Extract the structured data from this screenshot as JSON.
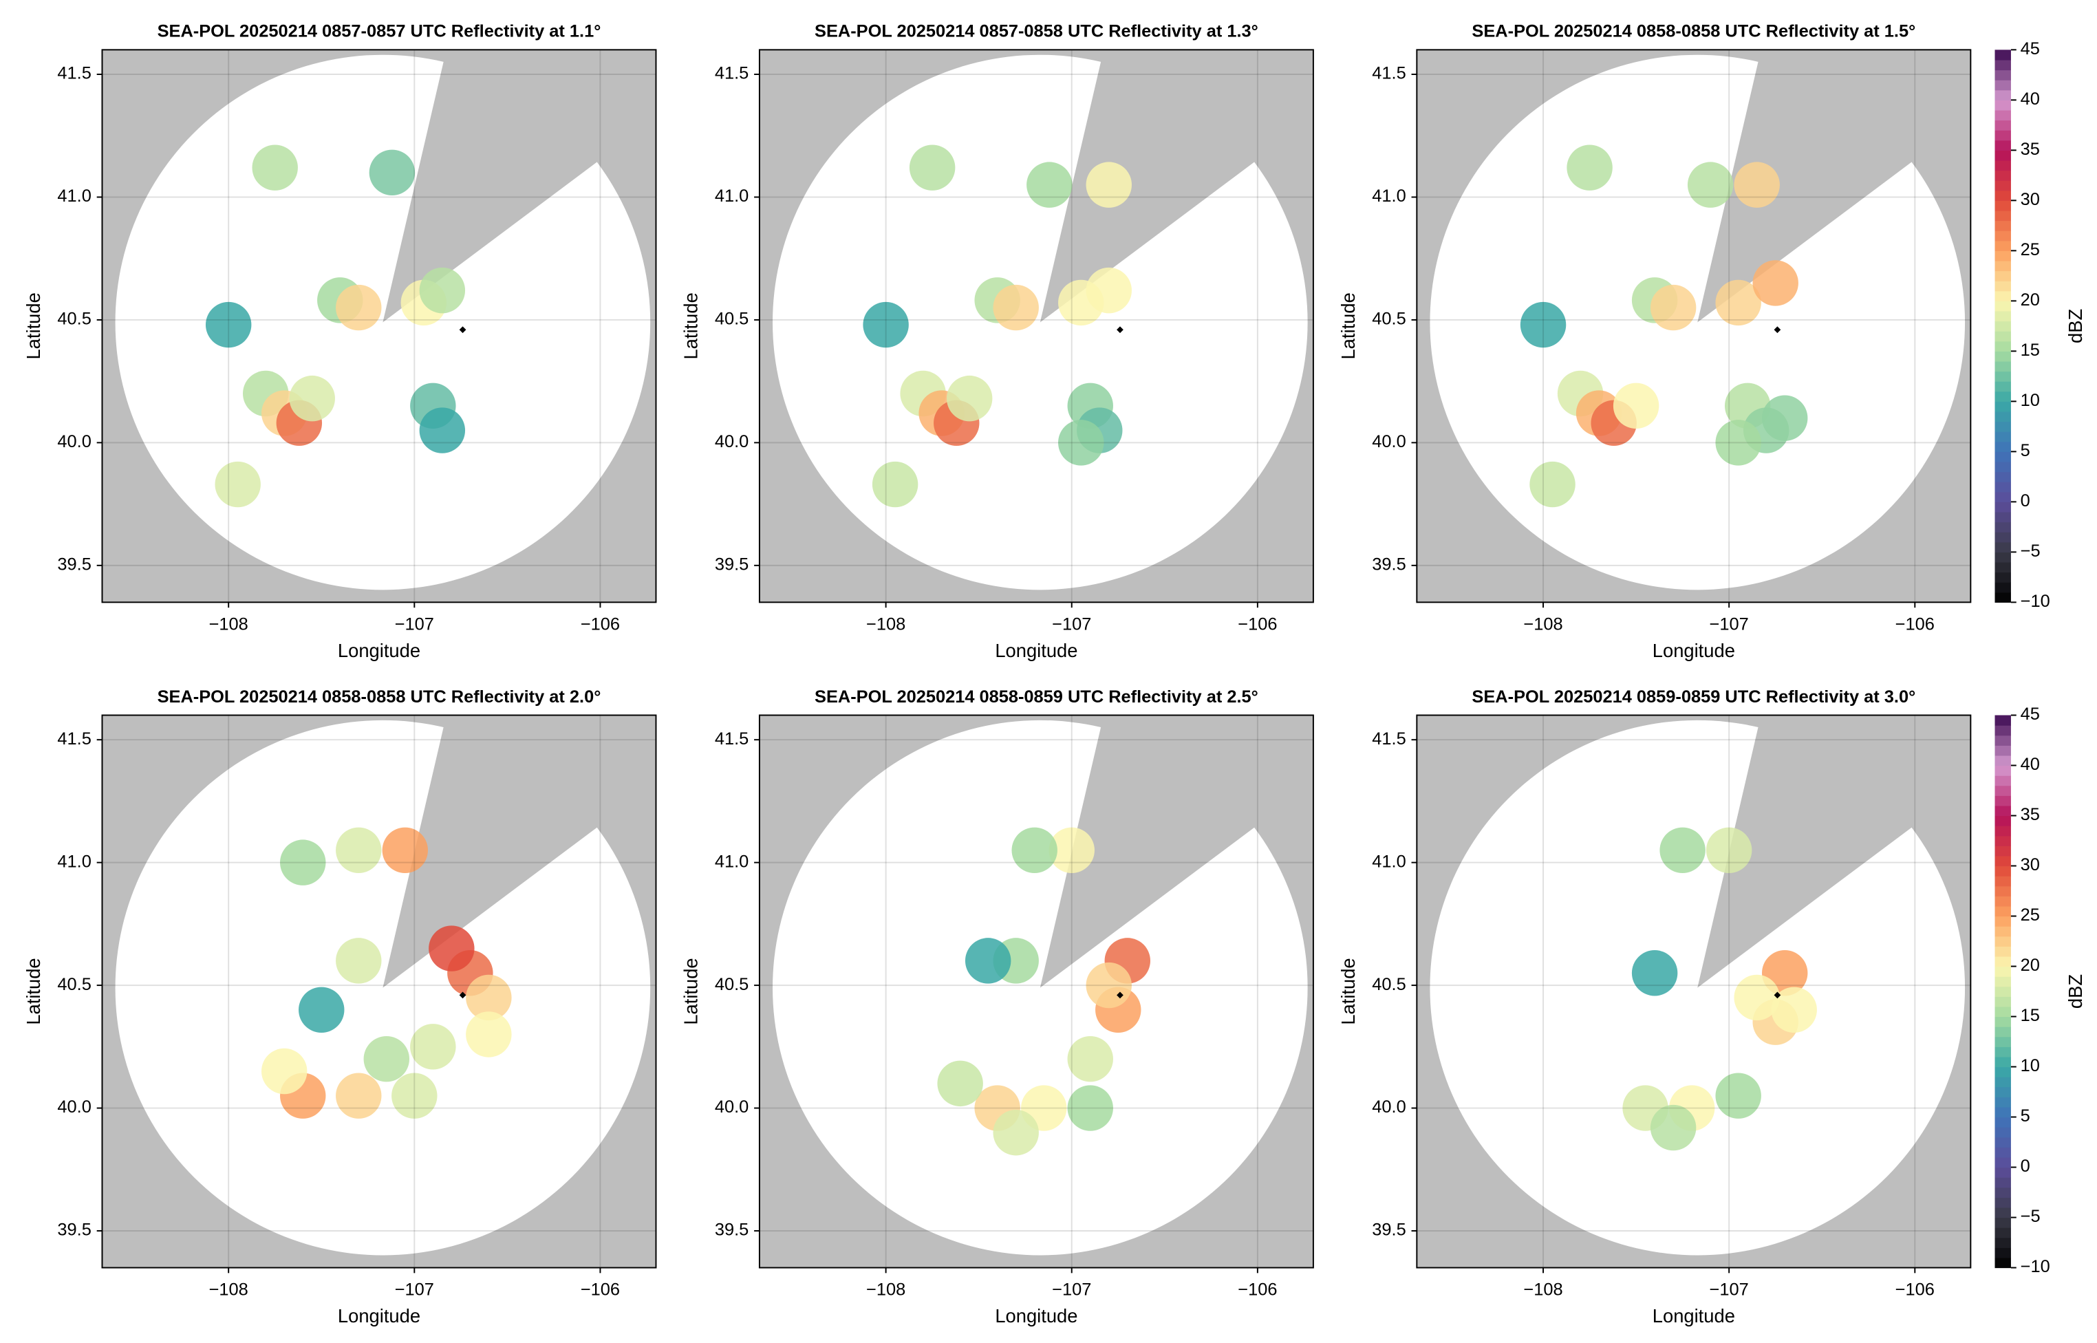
{
  "colormap": {
    "lim": [
      -10,
      45
    ],
    "colors": [
      "#000000",
      "#3a3a48",
      "#5b4d9a",
      "#3f73b8",
      "#3aa8a6",
      "#a6dba0",
      "#fbf6b0",
      "#fca160",
      "#e04a3a",
      "#b5125a",
      "#d59ad0",
      "#3d0b52"
    ]
  },
  "chart_data": [
    {
      "type": "radar",
      "title": "SEA-POL 20250214 0857-0857 UTC Reflectivity at 1.1°",
      "xlabel": "Longitude",
      "ylabel": "Latitude",
      "xlim": [
        -108.68,
        -105.7
      ],
      "ylim": [
        39.35,
        41.6
      ],
      "xticks": [
        {
          "value": -108,
          "label": "−108"
        },
        {
          "value": -107,
          "label": "−107"
        },
        {
          "value": -106,
          "label": "−106"
        }
      ],
      "yticks": [
        39.5,
        {
          "value": 40,
          "label": "40.0"
        },
        40.5,
        {
          "value": 41,
          "label": "41.0"
        },
        41.5
      ],
      "grid": true,
      "radar": {
        "x": -107.17,
        "y": 40.49
      },
      "site": {
        "x": -106.74,
        "y": 40.46
      },
      "x": [
        -107.8,
        -107.7,
        -107.62,
        -107.55,
        -107.4,
        -107.3,
        -106.95,
        -106.85,
        -106.9,
        -106.85,
        -107.12,
        -107.75,
        -107.95,
        -108.0
      ],
      "y": [
        40.2,
        40.12,
        40.08,
        40.18,
        40.58,
        40.55,
        40.57,
        40.62,
        40.15,
        40.05,
        41.1,
        41.12,
        39.83,
        40.48
      ],
      "values": [
        16,
        22,
        28,
        18,
        15,
        22,
        20,
        16,
        12,
        10,
        13,
        16,
        18,
        10
      ]
    },
    {
      "type": "radar",
      "title": "SEA-POL 20250214 0857-0858 UTC Reflectivity at 1.3°",
      "xlabel": "Longitude",
      "ylabel": "Latitude",
      "xlim": [
        -108.68,
        -105.7
      ],
      "ylim": [
        39.35,
        41.6
      ],
      "xticks": [
        {
          "value": -108,
          "label": "−108"
        },
        {
          "value": -107,
          "label": "−107"
        },
        {
          "value": -106,
          "label": "−106"
        }
      ],
      "yticks": [
        39.5,
        {
          "value": 40,
          "label": "40.0"
        },
        40.5,
        {
          "value": 41,
          "label": "41.0"
        },
        41.5
      ],
      "grid": true,
      "radar": {
        "x": -107.17,
        "y": 40.49
      },
      "site": {
        "x": -106.74,
        "y": 40.46
      },
      "x": [
        -107.8,
        -107.7,
        -107.62,
        -107.55,
        -107.4,
        -107.3,
        -106.95,
        -106.8,
        -106.9,
        -106.85,
        -107.12,
        -106.8,
        -107.75,
        -107.95,
        -108.0,
        -106.95
      ],
      "y": [
        40.2,
        40.12,
        40.08,
        40.18,
        40.58,
        40.55,
        40.57,
        40.62,
        40.15,
        40.05,
        41.05,
        41.05,
        41.12,
        39.83,
        40.48,
        40.0
      ],
      "values": [
        18,
        24,
        28,
        18,
        16,
        22,
        20,
        20,
        14,
        12,
        15,
        20,
        16,
        17,
        10,
        14
      ]
    },
    {
      "type": "radar",
      "title": "SEA-POL 20250214 0858-0858 UTC Reflectivity at 1.5°",
      "xlabel": "Longitude",
      "ylabel": "Latitude",
      "xlim": [
        -108.68,
        -105.7
      ],
      "ylim": [
        39.35,
        41.6
      ],
      "xticks": [
        {
          "value": -108,
          "label": "−108"
        },
        {
          "value": -107,
          "label": "−107"
        },
        {
          "value": -106,
          "label": "−106"
        }
      ],
      "yticks": [
        39.5,
        {
          "value": 40,
          "label": "40.0"
        },
        40.5,
        {
          "value": 41,
          "label": "41.0"
        },
        41.5
      ],
      "grid": true,
      "radar": {
        "x": -107.17,
        "y": 40.49
      },
      "site": {
        "x": -106.74,
        "y": 40.46
      },
      "x": [
        -107.8,
        -107.7,
        -107.62,
        -107.5,
        -107.4,
        -107.3,
        -106.95,
        -106.75,
        -106.9,
        -106.8,
        -107.1,
        -106.85,
        -107.75,
        -107.95,
        -108.0,
        -106.95,
        -106.7
      ],
      "y": [
        40.2,
        40.12,
        40.08,
        40.15,
        40.58,
        40.55,
        40.57,
        40.65,
        40.15,
        40.05,
        41.05,
        41.05,
        41.12,
        39.83,
        40.48,
        40.0,
        40.1
      ],
      "values": [
        18,
        24,
        28,
        20,
        16,
        22,
        22,
        24,
        16,
        14,
        16,
        22,
        16,
        17,
        10,
        15,
        14
      ],
      "colorbar": {
        "label": "dBZ",
        "ticks": [
          {
            "value": -10,
            "label": "−10"
          },
          {
            "value": -5,
            "label": "−5"
          },
          0,
          5,
          10,
          15,
          20,
          25,
          30,
          35,
          40,
          45
        ]
      }
    },
    {
      "type": "radar",
      "title": "SEA-POL 20250214 0858-0858 UTC Reflectivity at 2.0°",
      "xlabel": "Longitude",
      "ylabel": "Latitude",
      "xlim": [
        -108.68,
        -105.7
      ],
      "ylim": [
        39.35,
        41.6
      ],
      "xticks": [
        {
          "value": -108,
          "label": "−108"
        },
        {
          "value": -107,
          "label": "−107"
        },
        {
          "value": -106,
          "label": "−106"
        }
      ],
      "yticks": [
        39.5,
        {
          "value": 40,
          "label": "40.0"
        },
        40.5,
        {
          "value": 41,
          "label": "41.0"
        },
        41.5
      ],
      "grid": true,
      "radar": {
        "x": -107.17,
        "y": 40.49
      },
      "site": {
        "x": -106.74,
        "y": 40.46
      },
      "x": [
        -107.6,
        -107.3,
        -107.0,
        -106.9,
        -106.7,
        -106.6,
        -107.3,
        -107.05,
        -107.3,
        -107.6,
        -106.6,
        -107.5,
        -106.8,
        -107.7,
        -107.15
      ],
      "y": [
        40.05,
        40.05,
        40.05,
        40.25,
        40.55,
        40.45,
        40.6,
        41.05,
        41.05,
        41.0,
        40.3,
        40.4,
        40.65,
        40.15,
        40.2
      ],
      "values": [
        25,
        22,
        18,
        18,
        28,
        22,
        18,
        25,
        18,
        15,
        20,
        10,
        30,
        20,
        16
      ]
    },
    {
      "type": "radar",
      "title": "SEA-POL 20250214 0858-0859 UTC Reflectivity at 2.5°",
      "xlabel": "Longitude",
      "ylabel": "Latitude",
      "xlim": [
        -108.68,
        -105.7
      ],
      "ylim": [
        39.35,
        41.6
      ],
      "xticks": [
        {
          "value": -108,
          "label": "−108"
        },
        {
          "value": -107,
          "label": "−107"
        },
        {
          "value": -106,
          "label": "−106"
        }
      ],
      "yticks": [
        39.5,
        {
          "value": 40,
          "label": "40.0"
        },
        40.5,
        {
          "value": 41,
          "label": "41.0"
        },
        41.5
      ],
      "grid": true,
      "radar": {
        "x": -107.17,
        "y": 40.49
      },
      "site": {
        "x": -106.74,
        "y": 40.46
      },
      "x": [
        -107.4,
        -107.15,
        -107.6,
        -106.9,
        -106.75,
        -106.7,
        -106.8,
        -107.3,
        -107.0,
        -107.2,
        -107.45,
        -107.3,
        -106.9
      ],
      "y": [
        40.0,
        40.0,
        40.1,
        40.2,
        40.4,
        40.6,
        40.5,
        40.6,
        41.05,
        41.05,
        40.6,
        39.9,
        40.0
      ],
      "values": [
        22,
        20,
        17,
        18,
        25,
        28,
        22,
        15,
        20,
        15,
        10,
        18,
        15
      ]
    },
    {
      "type": "radar",
      "title": "SEA-POL 20250214 0859-0859 UTC Reflectivity at 3.0°",
      "xlabel": "Longitude",
      "ylabel": "Latitude",
      "xlim": [
        -108.68,
        -105.7
      ],
      "ylim": [
        39.35,
        41.6
      ],
      "xticks": [
        {
          "value": -108,
          "label": "−108"
        },
        {
          "value": -107,
          "label": "−107"
        },
        {
          "value": -106,
          "label": "−106"
        }
      ],
      "yticks": [
        39.5,
        {
          "value": 40,
          "label": "40.0"
        },
        40.5,
        {
          "value": 41,
          "label": "41.0"
        },
        41.5
      ],
      "grid": true,
      "radar": {
        "x": -107.17,
        "y": 40.49
      },
      "site": {
        "x": -106.74,
        "y": 40.46
      },
      "x": [
        -107.45,
        -107.2,
        -106.95,
        -106.75,
        -106.7,
        -106.85,
        -106.65,
        -107.0,
        -107.25,
        -107.4,
        -107.3
      ],
      "y": [
        40.0,
        40.0,
        40.05,
        40.35,
        40.55,
        40.45,
        40.4,
        41.05,
        41.05,
        40.55,
        39.92
      ],
      "values": [
        18,
        20,
        15,
        22,
        25,
        20,
        20,
        18,
        15,
        10,
        16
      ],
      "colorbar": {
        "label": "dBZ",
        "ticks": [
          {
            "value": -10,
            "label": "−10"
          },
          {
            "value": -5,
            "label": "−5"
          },
          0,
          5,
          10,
          15,
          20,
          25,
          30,
          35,
          40,
          45
        ]
      }
    }
  ]
}
